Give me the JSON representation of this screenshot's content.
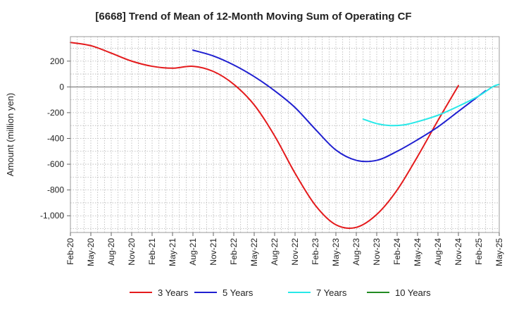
{
  "chart_data": {
    "type": "line",
    "title": "[6668]  Trend of Mean of 12-Month Moving Sum of Operating CF",
    "xlabel": "",
    "ylabel": "Amount (million yen)",
    "ylim": [
      -1130,
      390
    ],
    "yticks": [
      200,
      0,
      -200,
      -400,
      -600,
      -800,
      -1000
    ],
    "ytick_labels": [
      "200",
      "0",
      "-200",
      "-400",
      "-600",
      "-800",
      "-1,000"
    ],
    "x_tick_labels": [
      "Feb-20",
      "May-20",
      "Aug-20",
      "Nov-20",
      "Feb-21",
      "May-21",
      "Aug-21",
      "Nov-21",
      "Feb-22",
      "May-22",
      "Aug-22",
      "Nov-22",
      "Feb-23",
      "May-23",
      "Aug-23",
      "Nov-23",
      "Feb-24",
      "May-24",
      "Aug-24",
      "Nov-24",
      "Feb-25",
      "May-25"
    ],
    "x_range_months": [
      0,
      63
    ],
    "grid": true,
    "legend_position": "bottom",
    "series": [
      {
        "name": "3 Years",
        "color": "#e41a1c",
        "points": [
          [
            0,
            345
          ],
          [
            3,
            320
          ],
          [
            6,
            262
          ],
          [
            9,
            200
          ],
          [
            12,
            160
          ],
          [
            15,
            145
          ],
          [
            18,
            160
          ],
          [
            21,
            120
          ],
          [
            24,
            20
          ],
          [
            27,
            -140
          ],
          [
            30,
            -380
          ],
          [
            33,
            -670
          ],
          [
            36,
            -920
          ],
          [
            39,
            -1070
          ],
          [
            42,
            -1090
          ],
          [
            45,
            -990
          ],
          [
            48,
            -800
          ],
          [
            51,
            -540
          ],
          [
            54,
            -260
          ],
          [
            57,
            10
          ]
        ]
      },
      {
        "name": "5 Years",
        "color": "#1f1fd0",
        "points": [
          [
            18,
            285
          ],
          [
            21,
            240
          ],
          [
            24,
            170
          ],
          [
            27,
            80
          ],
          [
            30,
            -30
          ],
          [
            33,
            -160
          ],
          [
            36,
            -330
          ],
          [
            39,
            -490
          ],
          [
            42,
            -570
          ],
          [
            45,
            -570
          ],
          [
            48,
            -500
          ],
          [
            51,
            -410
          ],
          [
            54,
            -310
          ],
          [
            57,
            -190
          ],
          [
            60,
            -70
          ],
          [
            61,
            -30
          ]
        ]
      },
      {
        "name": "7 Years",
        "color": "#27e8e8",
        "points": [
          [
            43,
            -250
          ],
          [
            45,
            -285
          ],
          [
            47,
            -300
          ],
          [
            49,
            -295
          ],
          [
            51,
            -270
          ],
          [
            54,
            -220
          ],
          [
            57,
            -150
          ],
          [
            60,
            -70
          ],
          [
            62,
            0
          ],
          [
            63,
            20
          ]
        ]
      },
      {
        "name": "10 Years",
        "color": "#228b22",
        "points": []
      }
    ]
  }
}
